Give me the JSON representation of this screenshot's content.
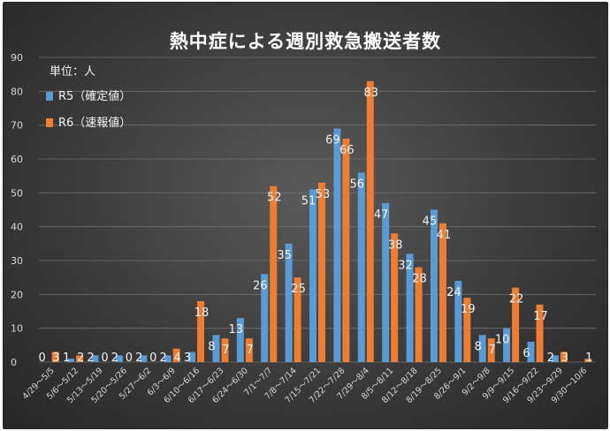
{
  "chart_data": {
    "type": "bar",
    "title": "熱中症による週別救急搬送者数",
    "unit_note": "単位：人",
    "ylim": [
      0,
      90
    ],
    "y_ticks": [
      0,
      10,
      20,
      30,
      40,
      50,
      60,
      70,
      80,
      90
    ],
    "grid": true,
    "legend_position": "top-left",
    "categories": [
      "4/29～5/5",
      "5/6～5/12",
      "5/13～5/19",
      "5/20～5/26",
      "5/27～6/2",
      "6/3～6/9",
      "6/10～6/16",
      "6/17～6/23",
      "6/24～6/30",
      "7/1～7/7",
      "7/8～7/14",
      "7/15～7/21",
      "7/22～7/28",
      "7/29～8/4",
      "8/5～8/11",
      "8/12～8/18",
      "8/19～8/25",
      "8/26～9/1",
      "9/2～9/8",
      "9/9～9/15",
      "9/16～9/22",
      "9/23～9/29",
      "9/30～10/6"
    ],
    "series": [
      {
        "name": "R5（確定値）",
        "color": "#5b9bd5",
        "values": [
          0,
          1,
          2,
          2,
          2,
          2,
          3,
          8,
          13,
          26,
          35,
          51,
          69,
          56,
          47,
          32,
          45,
          24,
          8,
          10,
          6,
          2,
          null
        ]
      },
      {
        "name": "R6（速報値）",
        "color": "#ed7d31",
        "values": [
          3,
          2,
          0,
          0,
          0,
          4,
          18,
          7,
          7,
          52,
          25,
          53,
          66,
          83,
          38,
          28,
          41,
          19,
          7,
          22,
          17,
          3,
          1
        ]
      }
    ]
  }
}
